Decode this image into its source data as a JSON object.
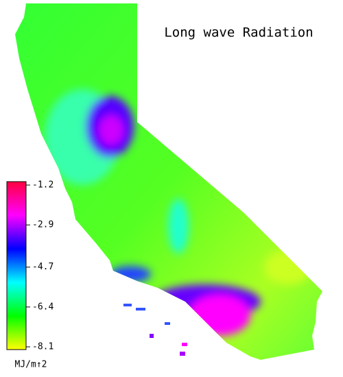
{
  "title": "Long wave Radiation",
  "colorbar": {
    "label": "MJ/m↑2",
    "lim": [
      -8.1,
      -1.2
    ],
    "ticks": [
      -1.2,
      -2.9,
      -4.7,
      -6.4,
      -8.1
    ],
    "colors": [
      "#ff0040",
      "#ff00ff",
      "#0000ff",
      "#00ffff",
      "#00ff00",
      "#ffff00"
    ]
  }
}
